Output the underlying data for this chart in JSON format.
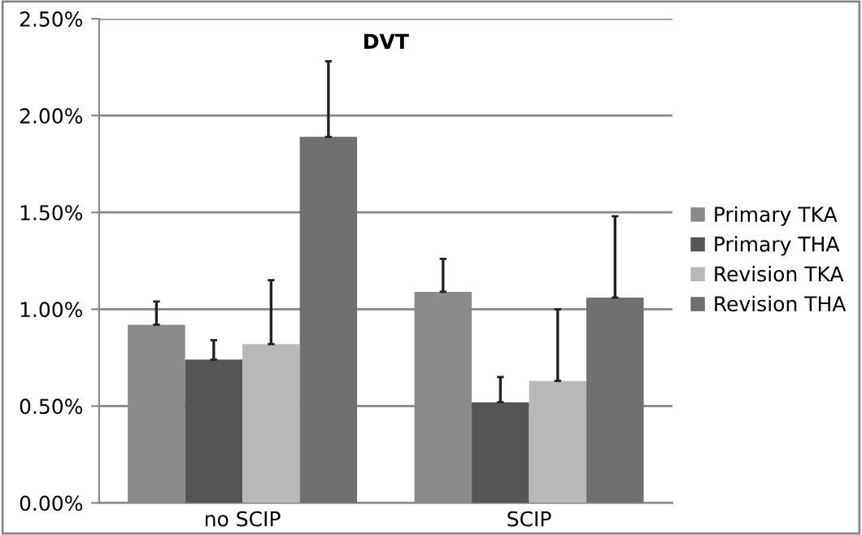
{
  "chart_data": {
    "type": "bar",
    "title": "DVT",
    "categories": [
      "no SCIP",
      "SCIP"
    ],
    "series": [
      {
        "name": "Primary TKA",
        "color": "#8a8a8a",
        "values": [
          0.92,
          1.09
        ],
        "errors": [
          [
            0.92,
            1.04
          ],
          [
            1.09,
            1.26
          ]
        ]
      },
      {
        "name": "Primary THA",
        "color": "#555555",
        "values": [
          0.74,
          0.52
        ],
        "errors": [
          [
            0.74,
            0.84
          ],
          [
            0.52,
            0.65
          ]
        ]
      },
      {
        "name": "Revision TKA",
        "color": "#b8b8b8",
        "values": [
          0.82,
          0.63
        ],
        "errors": [
          [
            0.82,
            1.15
          ],
          [
            0.63,
            1.0
          ]
        ]
      },
      {
        "name": "Revision THA",
        "color": "#707070",
        "values": [
          1.89,
          1.06
        ],
        "errors": [
          [
            1.89,
            2.28
          ],
          [
            1.06,
            1.48
          ]
        ]
      }
    ],
    "ylim": [
      0,
      2.5
    ],
    "yticks": [
      {
        "value": 0,
        "label": "0.00%"
      },
      {
        "value": 0.5,
        "label": "0.50%"
      },
      {
        "value": 1.0,
        "label": "1.00%"
      },
      {
        "value": 1.5,
        "label": "1.50%"
      },
      {
        "value": 2.0,
        "label": "2.00%"
      },
      {
        "value": 2.5,
        "label": "2.50%"
      }
    ],
    "grid": "y",
    "legend": "right"
  }
}
